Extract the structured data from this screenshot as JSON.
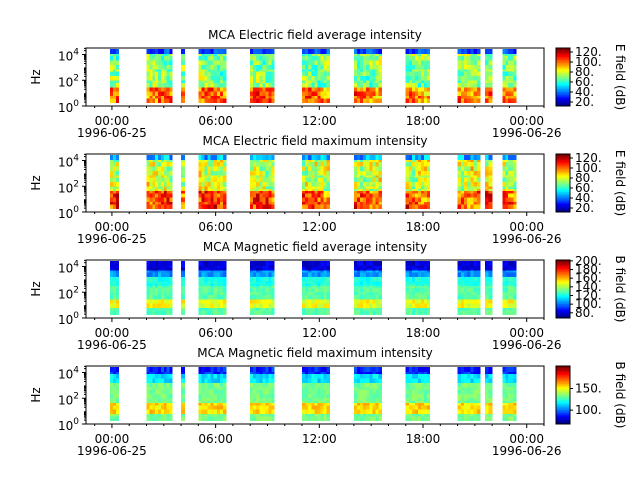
{
  "chart_data": [
    {
      "type": "heatmap",
      "title": "MCA  Electric field average intensity",
      "ylabel": "Hz",
      "yscale": "log",
      "ylim": [
        1,
        32000
      ],
      "yticks": [
        {
          "base": "10",
          "exp": "0"
        },
        {
          "base": "10",
          "exp": "2"
        },
        {
          "base": "10",
          "exp": "4"
        }
      ],
      "colorbar": {
        "label": "E field (dB)",
        "min": 12,
        "max": 128,
        "ticks": [
          "20.",
          "40.",
          "60.",
          "80.",
          "100.",
          "120."
        ],
        "tick_values": [
          20,
          40,
          60,
          80,
          100,
          120
        ]
      },
      "profile": "e_avg"
    },
    {
      "type": "heatmap",
      "title": "MCA  Electric field maximum intensity",
      "ylabel": "Hz",
      "yscale": "log",
      "ylim": [
        1,
        32000
      ],
      "yticks": [
        {
          "base": "10",
          "exp": "0"
        },
        {
          "base": "10",
          "exp": "2"
        },
        {
          "base": "10",
          "exp": "4"
        }
      ],
      "colorbar": {
        "label": "E field (dB)",
        "min": 12,
        "max": 128,
        "ticks": [
          "20.",
          "40.",
          "60.",
          "80.",
          "100.",
          "120."
        ],
        "tick_values": [
          20,
          40,
          60,
          80,
          100,
          120
        ]
      },
      "profile": "e_max"
    },
    {
      "type": "heatmap",
      "title": "MCA  Magnetic field average intensity",
      "ylabel": "Hz",
      "yscale": "log",
      "ylim": [
        1,
        32000
      ],
      "yticks": [
        {
          "base": "10",
          "exp": "0"
        },
        {
          "base": "10",
          "exp": "2"
        },
        {
          "base": "10",
          "exp": "4"
        }
      ],
      "colorbar": {
        "label": "B field (dB)",
        "min": 68,
        "max": 202,
        "ticks": [
          "80.",
          "100.",
          "120.",
          "140.",
          "160.",
          "180.",
          "200."
        ],
        "tick_values": [
          80,
          100,
          120,
          140,
          160,
          180,
          200
        ]
      },
      "profile": "b_avg"
    },
    {
      "type": "heatmap",
      "title": "MCA  Magnetic field maximum intensity",
      "ylabel": "Hz",
      "yscale": "log",
      "ylim": [
        1,
        32000
      ],
      "yticks": [
        {
          "base": "10",
          "exp": "0"
        },
        {
          "base": "10",
          "exp": "2"
        },
        {
          "base": "10",
          "exp": "4"
        }
      ],
      "colorbar": {
        "label": "B field (dB)",
        "min": 68,
        "max": 202,
        "ticks": [
          "100.",
          "150."
        ],
        "tick_values": [
          100,
          150
        ]
      },
      "profile": "b_max"
    }
  ],
  "x_axis": {
    "range_hours": [
      -1.5,
      25
    ],
    "ticks": [
      {
        "hour": 0,
        "label": "00:00",
        "date": "1996-06-25"
      },
      {
        "hour": 6,
        "label": "06:00",
        "date": ""
      },
      {
        "hour": 12,
        "label": "12:00",
        "date": ""
      },
      {
        "hour": 18,
        "label": "18:00",
        "date": ""
      },
      {
        "hour": 24,
        "label": "00:00",
        "date": "1996-06-26"
      }
    ],
    "minor_step_hours": 1
  },
  "data_intervals_hours": [
    [
      -0.1,
      0.4
    ],
    [
      2.0,
      3.5
    ],
    [
      4.0,
      4.2
    ],
    [
      5.0,
      6.6
    ],
    [
      8.0,
      9.4
    ],
    [
      11.0,
      12.6
    ],
    [
      14.0,
      15.6
    ],
    [
      17.0,
      18.4
    ],
    [
      20.0,
      21.3
    ],
    [
      21.6,
      22.0
    ],
    [
      22.6,
      23.4
    ]
  ]
}
